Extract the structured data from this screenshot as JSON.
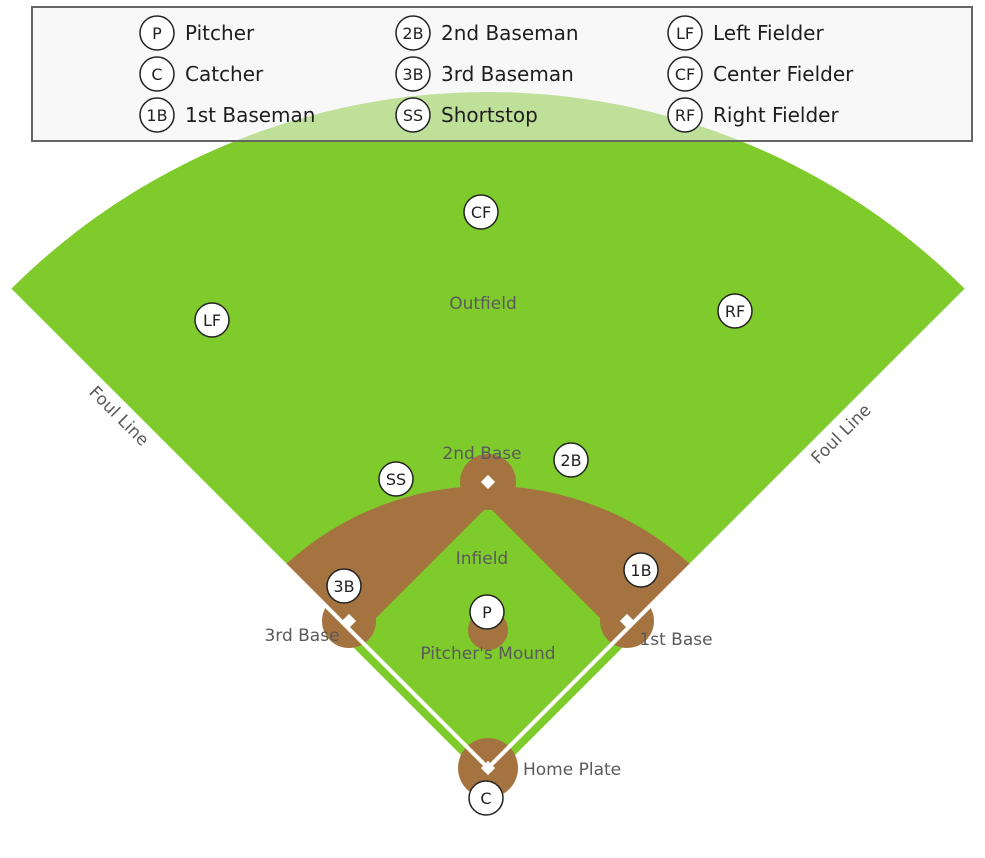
{
  "colors": {
    "grass": "#7ecb2b",
    "dirt": "#a47340",
    "foul_line": "#ffffff",
    "legend_bg": "#f2f2f2",
    "legend_border": "#666666"
  },
  "legend": {
    "items": [
      {
        "code": "P",
        "name": "Pitcher"
      },
      {
        "code": "C",
        "name": "Catcher"
      },
      {
        "code": "1B",
        "name": "1st Baseman"
      },
      {
        "code": "2B",
        "name": "2nd Baseman"
      },
      {
        "code": "3B",
        "name": "3rd Baseman"
      },
      {
        "code": "SS",
        "name": "Shortstop"
      },
      {
        "code": "LF",
        "name": "Left Fielder"
      },
      {
        "code": "CF",
        "name": "Center Fielder"
      },
      {
        "code": "RF",
        "name": "Right Fielder"
      }
    ]
  },
  "field_labels": {
    "outfield": "Outfield",
    "infield": "Infield",
    "second_base": "2nd Base",
    "third_base": "3rd Base",
    "first_base": "1st Base",
    "pitchers_mound": "Pitcher's Mound",
    "home_plate": "Home Plate",
    "foul_line_left": "Foul Line",
    "foul_line_right": "Foul Line"
  },
  "players": {
    "cf": "CF",
    "lf": "LF",
    "rf": "RF",
    "ss": "SS",
    "second": "2B",
    "third": "3B",
    "first": "1B",
    "pitcher": "P",
    "catcher": "C"
  }
}
